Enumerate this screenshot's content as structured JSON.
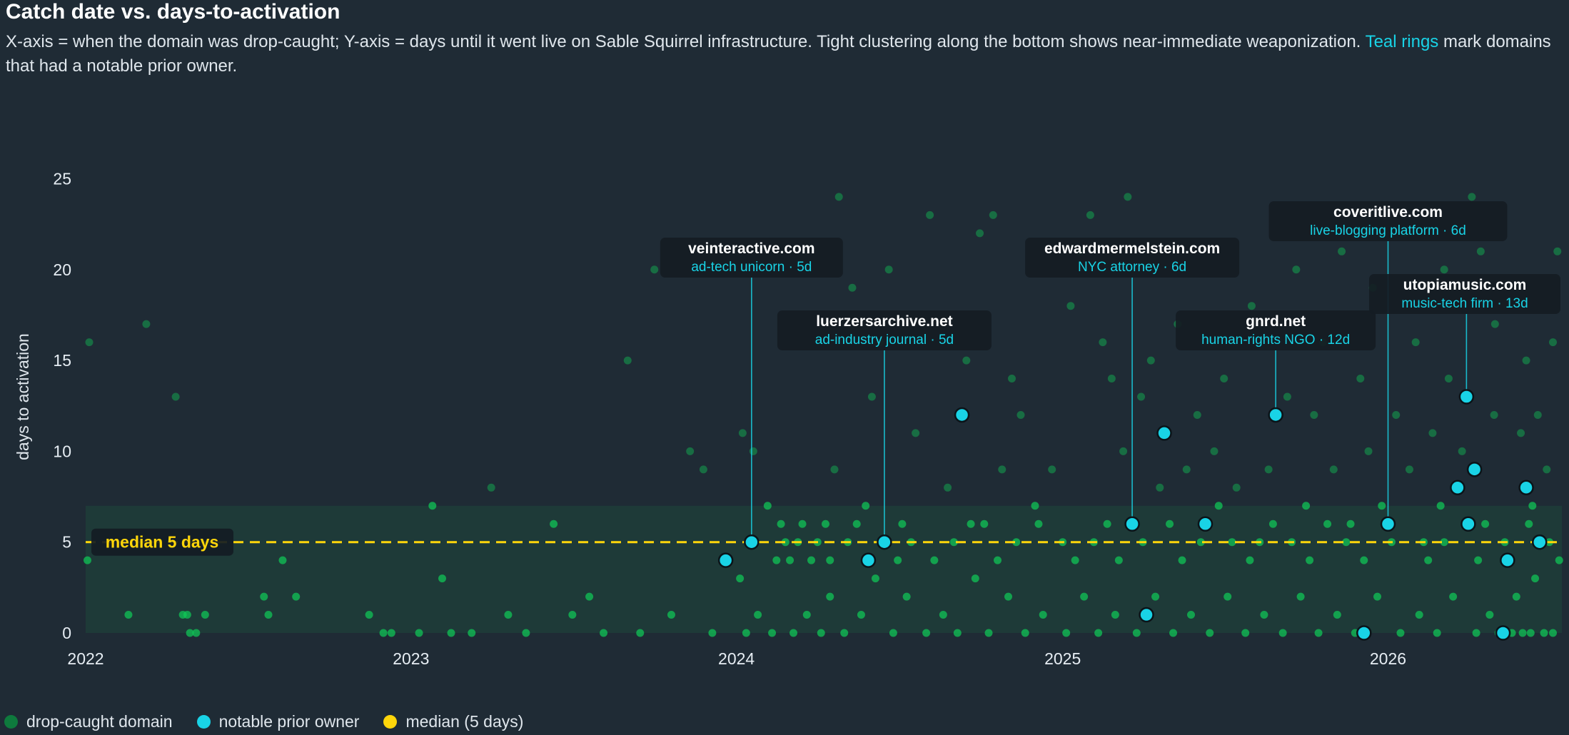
{
  "header": {
    "title": "Catch date vs. days-to-activation",
    "subtitle_pre": "X-axis = when the domain was drop-caught; Y-axis = days until it went live on Sable Squirrel infrastructure. Tight clustering along the bottom shows near-immediate weaponization. ",
    "subtitle_highlight": "Teal rings",
    "subtitle_post": " mark domains that had a notable prior owner."
  },
  "colors": {
    "background": "#1f2b35",
    "dot": "#0fc957",
    "notable": "#19d3e6",
    "median": "#ffd60a",
    "band": "#1f3d38",
    "label_bg": "#141c24"
  },
  "legend": {
    "items": [
      {
        "label": "drop-caught domain",
        "color": "#0e7a3d"
      },
      {
        "label": "notable prior owner",
        "color": "#19d3e6"
      },
      {
        "label": "median (5 days)",
        "color": "#ffd60a"
      }
    ]
  },
  "chart_data": {
    "type": "scatter",
    "title": "Catch date vs. days-to-activation",
    "ylabel": "days to activation",
    "xlim": [
      "2022-01-01",
      "2026-07-15"
    ],
    "ylim": [
      0,
      26
    ],
    "x_ticks": [
      "2022",
      "2023",
      "2024",
      "2025",
      "2026"
    ],
    "y_ticks": [
      0,
      5,
      10,
      15,
      20,
      25
    ],
    "median": {
      "value": 5,
      "label": "median 5 days"
    },
    "shaded_band": [
      0,
      7
    ],
    "legend_position": "bottom-left",
    "notable": [
      {
        "x": "2023-12-20",
        "y": 4
      },
      {
        "x": "2024-01-18",
        "y": 5,
        "domain": "veinteractive.com",
        "desc": "ad-tech unicorn · 5d"
      },
      {
        "x": "2024-05-28",
        "y": 4
      },
      {
        "x": "2024-06-15",
        "y": 5,
        "domain": "luerzersarchive.net",
        "desc": "ad-industry journal · 5d"
      },
      {
        "x": "2024-09-10",
        "y": 12
      },
      {
        "x": "2025-03-20",
        "y": 6,
        "domain": "edwardmermelstein.com",
        "desc": "NYC attorney · 6d"
      },
      {
        "x": "2025-04-05",
        "y": 1
      },
      {
        "x": "2025-04-25",
        "y": 11
      },
      {
        "x": "2025-06-10",
        "y": 6
      },
      {
        "x": "2025-08-28",
        "y": 12,
        "domain": "gnrd.net",
        "desc": "human-rights NGO · 12d"
      },
      {
        "x": "2025-12-05",
        "y": 0
      },
      {
        "x": "2026-01-01",
        "y": 6,
        "domain": "coveritlive.com",
        "desc": "live-blogging platform · 6d"
      },
      {
        "x": "2026-03-20",
        "y": 8
      },
      {
        "x": "2026-03-30",
        "y": 13,
        "domain": "utopiamusic.com",
        "desc": "music-tech firm · 13d"
      },
      {
        "x": "2026-04-01",
        "y": 6
      },
      {
        "x": "2026-04-08",
        "y": 9
      },
      {
        "x": "2026-05-10",
        "y": 0
      },
      {
        "x": "2026-05-15",
        "y": 4
      },
      {
        "x": "2026-06-05",
        "y": 8
      },
      {
        "x": "2026-06-20",
        "y": 5
      }
    ],
    "domains": [
      {
        "x": "2022-01-03",
        "y": 4
      },
      {
        "x": "2022-01-05",
        "y": 16
      },
      {
        "x": "2022-02-18",
        "y": 1
      },
      {
        "x": "2022-03-10",
        "y": 17
      },
      {
        "x": "2022-04-12",
        "y": 13
      },
      {
        "x": "2022-04-20",
        "y": 1
      },
      {
        "x": "2022-04-25",
        "y": 1
      },
      {
        "x": "2022-04-28",
        "y": 0
      },
      {
        "x": "2022-05-05",
        "y": 0
      },
      {
        "x": "2022-05-15",
        "y": 1
      },
      {
        "x": "2022-07-20",
        "y": 2
      },
      {
        "x": "2022-07-25",
        "y": 1
      },
      {
        "x": "2022-08-10",
        "y": 4
      },
      {
        "x": "2022-08-25",
        "y": 2
      },
      {
        "x": "2022-11-15",
        "y": 1
      },
      {
        "x": "2022-12-01",
        "y": 0
      },
      {
        "x": "2022-12-10",
        "y": 0
      },
      {
        "x": "2023-01-10",
        "y": 0
      },
      {
        "x": "2023-01-25",
        "y": 7
      },
      {
        "x": "2023-02-05",
        "y": 3
      },
      {
        "x": "2023-02-15",
        "y": 0
      },
      {
        "x": "2023-03-10",
        "y": 0
      },
      {
        "x": "2023-04-01",
        "y": 8
      },
      {
        "x": "2023-04-20",
        "y": 1
      },
      {
        "x": "2023-05-10",
        "y": 0
      },
      {
        "x": "2023-06-10",
        "y": 6
      },
      {
        "x": "2023-07-01",
        "y": 1
      },
      {
        "x": "2023-07-20",
        "y": 2
      },
      {
        "x": "2023-08-05",
        "y": 0
      },
      {
        "x": "2023-09-01",
        "y": 15
      },
      {
        "x": "2023-09-15",
        "y": 0
      },
      {
        "x": "2023-10-01",
        "y": 20
      },
      {
        "x": "2023-10-20",
        "y": 1
      },
      {
        "x": "2023-11-10",
        "y": 10
      },
      {
        "x": "2023-11-25",
        "y": 9
      },
      {
        "x": "2023-12-05",
        "y": 0
      },
      {
        "x": "2024-01-05",
        "y": 3
      },
      {
        "x": "2024-01-12",
        "y": 0
      },
      {
        "x": "2024-01-25",
        "y": 1
      },
      {
        "x": "2024-02-10",
        "y": 0
      },
      {
        "x": "2024-02-20",
        "y": 6
      },
      {
        "x": "2024-03-05",
        "y": 0
      },
      {
        "x": "2024-03-20",
        "y": 1
      },
      {
        "x": "2024-04-05",
        "y": 0
      },
      {
        "x": "2024-04-15",
        "y": 2
      },
      {
        "x": "2024-05-01",
        "y": 0
      },
      {
        "x": "2024-05-20",
        "y": 1
      },
      {
        "x": "2024-06-05",
        "y": 3
      },
      {
        "x": "2024-06-25",
        "y": 0
      },
      {
        "x": "2024-07-10",
        "y": 2
      },
      {
        "x": "2024-08-01",
        "y": 0
      },
      {
        "x": "2024-08-20",
        "y": 1
      },
      {
        "x": "2024-09-05",
        "y": 0
      },
      {
        "x": "2024-09-25",
        "y": 3
      },
      {
        "x": "2024-10-10",
        "y": 0
      },
      {
        "x": "2024-11-01",
        "y": 2
      },
      {
        "x": "2024-11-20",
        "y": 0
      },
      {
        "x": "2024-12-10",
        "y": 1
      },
      {
        "x": "2025-01-05",
        "y": 0
      },
      {
        "x": "2025-01-25",
        "y": 2
      },
      {
        "x": "2025-02-10",
        "y": 0
      },
      {
        "x": "2025-03-01",
        "y": 1
      },
      {
        "x": "2025-03-25",
        "y": 0
      },
      {
        "x": "2025-04-15",
        "y": 2
      },
      {
        "x": "2025-05-05",
        "y": 0
      },
      {
        "x": "2025-05-25",
        "y": 1
      },
      {
        "x": "2025-06-15",
        "y": 0
      },
      {
        "x": "2025-07-05",
        "y": 2
      },
      {
        "x": "2025-07-25",
        "y": 0
      },
      {
        "x": "2025-08-15",
        "y": 1
      },
      {
        "x": "2025-09-05",
        "y": 0
      },
      {
        "x": "2025-09-25",
        "y": 2
      },
      {
        "x": "2025-10-15",
        "y": 0
      },
      {
        "x": "2025-11-05",
        "y": 1
      },
      {
        "x": "2025-11-25",
        "y": 0
      },
      {
        "x": "2025-12-20",
        "y": 2
      },
      {
        "x": "2026-01-15",
        "y": 0
      },
      {
        "x": "2026-02-05",
        "y": 1
      },
      {
        "x": "2026-02-25",
        "y": 0
      },
      {
        "x": "2026-03-15",
        "y": 2
      },
      {
        "x": "2026-04-10",
        "y": 0
      },
      {
        "x": "2026-04-25",
        "y": 1
      },
      {
        "x": "2026-05-05",
        "y": 0
      },
      {
        "x": "2026-05-20",
        "y": 0
      },
      {
        "x": "2026-05-25",
        "y": 2
      },
      {
        "x": "2026-06-01",
        "y": 0
      },
      {
        "x": "2026-06-10",
        "y": 0
      },
      {
        "x": "2026-06-15",
        "y": 3
      },
      {
        "x": "2026-06-25",
        "y": 0
      },
      {
        "x": "2026-07-05",
        "y": 0
      },
      {
        "x": "2024-01-08",
        "y": 11
      },
      {
        "x": "2024-01-20",
        "y": 10
      },
      {
        "x": "2024-02-05",
        "y": 7
      },
      {
        "x": "2024-02-25",
        "y": 5
      },
      {
        "x": "2024-03-15",
        "y": 6
      },
      {
        "x": "2024-03-25",
        "y": 4
      },
      {
        "x": "2024-04-10",
        "y": 6
      },
      {
        "x": "2024-04-20",
        "y": 9
      },
      {
        "x": "2024-04-25",
        "y": 24
      },
      {
        "x": "2024-05-10",
        "y": 19
      },
      {
        "x": "2024-05-25",
        "y": 7
      },
      {
        "x": "2024-06-01",
        "y": 13
      },
      {
        "x": "2024-06-10",
        "y": 16
      },
      {
        "x": "2024-06-20",
        "y": 20
      },
      {
        "x": "2024-07-05",
        "y": 6
      },
      {
        "x": "2024-07-20",
        "y": 11
      },
      {
        "x": "2024-08-05",
        "y": 23
      },
      {
        "x": "2024-08-25",
        "y": 8
      },
      {
        "x": "2024-09-15",
        "y": 15
      },
      {
        "x": "2024-09-30",
        "y": 22
      },
      {
        "x": "2024-10-05",
        "y": 6
      },
      {
        "x": "2024-10-15",
        "y": 23
      },
      {
        "x": "2024-10-25",
        "y": 9
      },
      {
        "x": "2024-11-05",
        "y": 14
      },
      {
        "x": "2024-11-15",
        "y": 12
      },
      {
        "x": "2024-12-01",
        "y": 7
      },
      {
        "x": "2024-12-20",
        "y": 9
      },
      {
        "x": "2025-01-10",
        "y": 18
      },
      {
        "x": "2025-01-20",
        "y": 21
      },
      {
        "x": "2025-02-01",
        "y": 23
      },
      {
        "x": "2025-02-15",
        "y": 16
      },
      {
        "x": "2025-02-25",
        "y": 14
      },
      {
        "x": "2025-03-10",
        "y": 10
      },
      {
        "x": "2025-03-15",
        "y": 24
      },
      {
        "x": "2025-03-30",
        "y": 13
      },
      {
        "x": "2025-04-10",
        "y": 15
      },
      {
        "x": "2025-04-20",
        "y": 8
      },
      {
        "x": "2025-05-10",
        "y": 17
      },
      {
        "x": "2025-05-20",
        "y": 9
      },
      {
        "x": "2025-06-01",
        "y": 12
      },
      {
        "x": "2025-06-20",
        "y": 10
      },
      {
        "x": "2025-07-01",
        "y": 14
      },
      {
        "x": "2025-07-15",
        "y": 8
      },
      {
        "x": "2025-08-01",
        "y": 18
      },
      {
        "x": "2025-08-10",
        "y": 5
      },
      {
        "x": "2025-08-20",
        "y": 9
      },
      {
        "x": "2025-09-10",
        "y": 13
      },
      {
        "x": "2025-09-20",
        "y": 20
      },
      {
        "x": "2025-10-01",
        "y": 7
      },
      {
        "x": "2025-10-10",
        "y": 12
      },
      {
        "x": "2025-10-20",
        "y": 16
      },
      {
        "x": "2025-11-01",
        "y": 9
      },
      {
        "x": "2025-11-10",
        "y": 21
      },
      {
        "x": "2025-11-20",
        "y": 6
      },
      {
        "x": "2025-12-01",
        "y": 14
      },
      {
        "x": "2025-12-10",
        "y": 10
      },
      {
        "x": "2025-12-15",
        "y": 19
      },
      {
        "x": "2025-12-25",
        "y": 7
      },
      {
        "x": "2026-01-10",
        "y": 12
      },
      {
        "x": "2026-01-20",
        "y": 22
      },
      {
        "x": "2026-01-25",
        "y": 9
      },
      {
        "x": "2026-02-01",
        "y": 16
      },
      {
        "x": "2026-02-10",
        "y": 5
      },
      {
        "x": "2026-02-20",
        "y": 11
      },
      {
        "x": "2026-03-01",
        "y": 7
      },
      {
        "x": "2026-03-05",
        "y": 20
      },
      {
        "x": "2026-03-10",
        "y": 14
      },
      {
        "x": "2026-03-25",
        "y": 10
      },
      {
        "x": "2026-04-05",
        "y": 24
      },
      {
        "x": "2026-04-15",
        "y": 21
      },
      {
        "x": "2026-04-20",
        "y": 6
      },
      {
        "x": "2026-04-30",
        "y": 12
      },
      {
        "x": "2026-05-01",
        "y": 17
      },
      {
        "x": "2026-05-30",
        "y": 11
      },
      {
        "x": "2026-06-05",
        "y": 15
      },
      {
        "x": "2026-06-12",
        "y": 7
      },
      {
        "x": "2026-06-18",
        "y": 12
      },
      {
        "x": "2026-06-28",
        "y": 9
      },
      {
        "x": "2026-07-05",
        "y": 16
      },
      {
        "x": "2026-07-10",
        "y": 21
      },
      {
        "x": "2026-07-12",
        "y": 4
      },
      {
        "x": "2024-02-15",
        "y": 4
      },
      {
        "x": "2024-03-01",
        "y": 4
      },
      {
        "x": "2024-03-10",
        "y": 5
      },
      {
        "x": "2024-04-01",
        "y": 5
      },
      {
        "x": "2024-04-15",
        "y": 4
      },
      {
        "x": "2024-05-05",
        "y": 5
      },
      {
        "x": "2024-05-15",
        "y": 6
      },
      {
        "x": "2024-06-30",
        "y": 4
      },
      {
        "x": "2024-07-15",
        "y": 5
      },
      {
        "x": "2024-08-10",
        "y": 4
      },
      {
        "x": "2024-09-01",
        "y": 5
      },
      {
        "x": "2024-09-20",
        "y": 6
      },
      {
        "x": "2024-10-20",
        "y": 4
      },
      {
        "x": "2024-11-10",
        "y": 5
      },
      {
        "x": "2024-12-05",
        "y": 6
      },
      {
        "x": "2025-01-01",
        "y": 5
      },
      {
        "x": "2025-01-15",
        "y": 4
      },
      {
        "x": "2025-02-05",
        "y": 5
      },
      {
        "x": "2025-02-20",
        "y": 6
      },
      {
        "x": "2025-03-05",
        "y": 4
      },
      {
        "x": "2025-04-01",
        "y": 5
      },
      {
        "x": "2025-05-01",
        "y": 6
      },
      {
        "x": "2025-05-15",
        "y": 4
      },
      {
        "x": "2025-06-05",
        "y": 5
      },
      {
        "x": "2025-06-25",
        "y": 7
      },
      {
        "x": "2025-07-10",
        "y": 5
      },
      {
        "x": "2025-07-30",
        "y": 4
      },
      {
        "x": "2025-08-25",
        "y": 6
      },
      {
        "x": "2025-09-15",
        "y": 5
      },
      {
        "x": "2025-10-05",
        "y": 4
      },
      {
        "x": "2025-10-25",
        "y": 6
      },
      {
        "x": "2025-11-15",
        "y": 5
      },
      {
        "x": "2025-12-05",
        "y": 4
      },
      {
        "x": "2026-01-05",
        "y": 5
      },
      {
        "x": "2026-02-15",
        "y": 4
      },
      {
        "x": "2026-03-05",
        "y": 5
      },
      {
        "x": "2026-04-12",
        "y": 4
      },
      {
        "x": "2026-05-12",
        "y": 5
      },
      {
        "x": "2026-06-08",
        "y": 6
      },
      {
        "x": "2026-07-01",
        "y": 5
      }
    ]
  }
}
